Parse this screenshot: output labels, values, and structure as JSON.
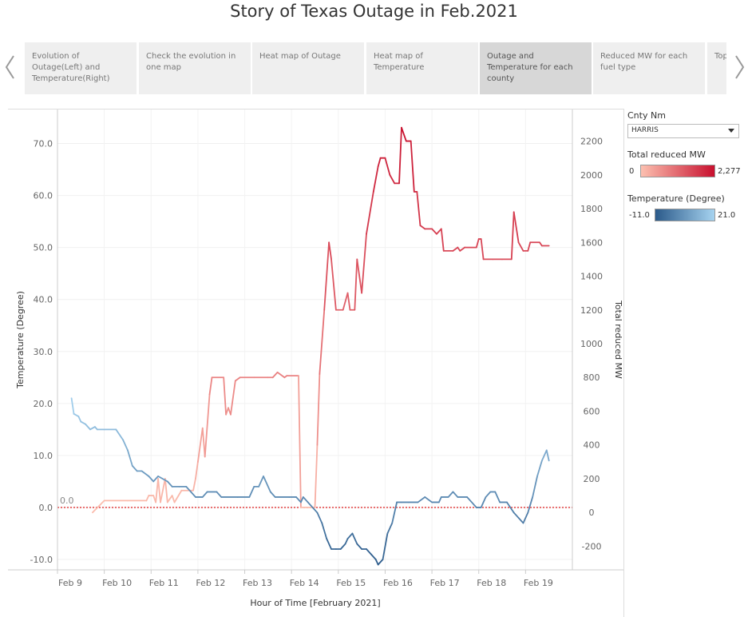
{
  "title": "Story of Texas Outage in Feb.2021",
  "tabs": [
    {
      "label": "Evolution of Outage(Left) and Temperature(Right)"
    },
    {
      "label": "Check the evolution in one map"
    },
    {
      "label": "Heat map of Outage"
    },
    {
      "label": "Heat map of Temperature"
    },
    {
      "label": "Outage and Temperature for each county",
      "active": true
    },
    {
      "label": "Reduced MW for each fuel type"
    },
    {
      "label": "Top ... at ..."
    }
  ],
  "legend": {
    "county_title": "Cnty Nm",
    "county_value": "HARRIS",
    "mw_title": "Total reduced MW",
    "mw_min": "0",
    "mw_max": "2,277",
    "temp_title": "Temperature (Degree)",
    "temp_min": "-11.0",
    "temp_max": "21.0"
  },
  "colors": {
    "mw_low": "#fcc0b0",
    "mw_high": "#c8102e",
    "temp_low": "#2b5a8a",
    "temp_high": "#a6d3f0",
    "reference_line": "#e03030"
  },
  "chart_data": {
    "type": "line",
    "xlabel": "Hour of Time [February 2021]",
    "ylabel_left": "Temperature (Degree)",
    "ylabel_right": "Total reduced MW",
    "x_ticks": [
      "Feb 9",
      "Feb 10",
      "Feb 11",
      "Feb 12",
      "Feb 13",
      "Feb 14",
      "Feb 15",
      "Feb 16",
      "Feb 17",
      "Feb 18",
      "Feb 19"
    ],
    "xlim": [
      "Feb 9",
      "Feb 20"
    ],
    "ylim_left": [
      -12,
      75
    ],
    "ylim_right": [
      -340,
      2340
    ],
    "y_ticks_left": [
      "-10.0",
      "0.0",
      "10.0",
      "20.0",
      "30.0",
      "40.0",
      "50.0",
      "60.0",
      "70.0"
    ],
    "y_ticks_right": [
      "-200",
      "0",
      "200",
      "400",
      "600",
      "800",
      "1000",
      "1200",
      "1400",
      "1600",
      "1800",
      "2000",
      "2200"
    ],
    "reference_line": {
      "axis": "left",
      "value": 0,
      "label": "0.0"
    },
    "series": [
      {
        "name": "Total reduced MW",
        "axis": "right",
        "points": [
          [
            9.75,
            0
          ],
          [
            10.0,
            70
          ],
          [
            10.5,
            70
          ],
          [
            10.9,
            70
          ],
          [
            10.95,
            100
          ],
          [
            11.05,
            100
          ],
          [
            11.1,
            60
          ],
          [
            11.15,
            200
          ],
          [
            11.2,
            60
          ],
          [
            11.3,
            200
          ],
          [
            11.35,
            60
          ],
          [
            11.45,
            100
          ],
          [
            11.5,
            60
          ],
          [
            11.65,
            130
          ],
          [
            11.9,
            130
          ],
          [
            11.95,
            200
          ],
          [
            12.0,
            300
          ],
          [
            12.1,
            500
          ],
          [
            12.15,
            330
          ],
          [
            12.25,
            700
          ],
          [
            12.3,
            800
          ],
          [
            12.55,
            800
          ],
          [
            12.6,
            580
          ],
          [
            12.65,
            620
          ],
          [
            12.7,
            580
          ],
          [
            12.8,
            780
          ],
          [
            12.9,
            800
          ],
          [
            13.2,
            800
          ],
          [
            13.5,
            800
          ],
          [
            13.6,
            800
          ],
          [
            13.7,
            830
          ],
          [
            13.85,
            800
          ],
          [
            13.9,
            810
          ],
          [
            14.15,
            810
          ],
          [
            14.2,
            30
          ],
          [
            14.5,
            30
          ],
          [
            14.55,
            400
          ],
          [
            14.6,
            820
          ],
          [
            14.7,
            1200
          ],
          [
            14.8,
            1600
          ],
          [
            14.85,
            1500
          ],
          [
            14.95,
            1200
          ],
          [
            15.1,
            1200
          ],
          [
            15.2,
            1300
          ],
          [
            15.25,
            1200
          ],
          [
            15.35,
            1200
          ],
          [
            15.4,
            1500
          ],
          [
            15.5,
            1300
          ],
          [
            15.6,
            1650
          ],
          [
            15.75,
            1900
          ],
          [
            15.85,
            2050
          ],
          [
            15.9,
            2100
          ],
          [
            16.0,
            2100
          ],
          [
            16.1,
            2000
          ],
          [
            16.2,
            1950
          ],
          [
            16.3,
            1950
          ],
          [
            16.35,
            2280
          ],
          [
            16.45,
            2200
          ],
          [
            16.55,
            2200
          ],
          [
            16.62,
            1900
          ],
          [
            16.68,
            1900
          ],
          [
            16.75,
            1700
          ],
          [
            16.85,
            1680
          ],
          [
            17.0,
            1680
          ],
          [
            17.1,
            1650
          ],
          [
            17.2,
            1680
          ],
          [
            17.25,
            1550
          ],
          [
            17.45,
            1550
          ],
          [
            17.55,
            1570
          ],
          [
            17.6,
            1550
          ],
          [
            17.7,
            1570
          ],
          [
            17.95,
            1570
          ],
          [
            18.0,
            1620
          ],
          [
            18.05,
            1620
          ],
          [
            18.1,
            1500
          ],
          [
            18.3,
            1500
          ],
          [
            18.5,
            1500
          ],
          [
            18.7,
            1500
          ],
          [
            18.75,
            1780
          ],
          [
            18.85,
            1600
          ],
          [
            18.95,
            1550
          ],
          [
            19.05,
            1550
          ],
          [
            19.1,
            1600
          ],
          [
            19.3,
            1600
          ],
          [
            19.35,
            1580
          ],
          [
            19.5,
            1580
          ]
        ]
      },
      {
        "name": "Temperature",
        "axis": "left",
        "points": [
          [
            9.3,
            21
          ],
          [
            9.35,
            18
          ],
          [
            9.45,
            17.5
          ],
          [
            9.5,
            16.5
          ],
          [
            9.6,
            16
          ],
          [
            9.7,
            15
          ],
          [
            9.8,
            15.5
          ],
          [
            9.85,
            15
          ],
          [
            10.0,
            15
          ],
          [
            10.25,
            15
          ],
          [
            10.4,
            13
          ],
          [
            10.5,
            11
          ],
          [
            10.6,
            8
          ],
          [
            10.7,
            7
          ],
          [
            10.8,
            7
          ],
          [
            10.95,
            6
          ],
          [
            11.05,
            5
          ],
          [
            11.15,
            6
          ],
          [
            11.35,
            5
          ],
          [
            11.45,
            4
          ],
          [
            11.6,
            4
          ],
          [
            11.75,
            4
          ],
          [
            11.85,
            3
          ],
          [
            11.95,
            2
          ],
          [
            12.1,
            2
          ],
          [
            12.2,
            3
          ],
          [
            12.4,
            3
          ],
          [
            12.5,
            2
          ],
          [
            12.85,
            2
          ],
          [
            13.1,
            2
          ],
          [
            13.2,
            4
          ],
          [
            13.3,
            4
          ],
          [
            13.4,
            6
          ],
          [
            13.55,
            3
          ],
          [
            13.65,
            2
          ],
          [
            13.95,
            2
          ],
          [
            14.1,
            2
          ],
          [
            14.2,
            1
          ],
          [
            14.25,
            2
          ],
          [
            14.35,
            1
          ],
          [
            14.45,
            0
          ],
          [
            14.55,
            -1
          ],
          [
            14.65,
            -3
          ],
          [
            14.75,
            -6
          ],
          [
            14.85,
            -8
          ],
          [
            14.95,
            -8
          ],
          [
            15.05,
            -8
          ],
          [
            15.15,
            -7
          ],
          [
            15.2,
            -6
          ],
          [
            15.3,
            -5
          ],
          [
            15.4,
            -7
          ],
          [
            15.5,
            -8
          ],
          [
            15.6,
            -8
          ],
          [
            15.7,
            -9
          ],
          [
            15.8,
            -10
          ],
          [
            15.85,
            -11
          ],
          [
            15.95,
            -10
          ],
          [
            16.05,
            -5
          ],
          [
            16.15,
            -3
          ],
          [
            16.25,
            1
          ],
          [
            16.35,
            1
          ],
          [
            16.5,
            1
          ],
          [
            16.7,
            1
          ],
          [
            16.85,
            2
          ],
          [
            17.0,
            1
          ],
          [
            17.15,
            1
          ],
          [
            17.2,
            2
          ],
          [
            17.35,
            2
          ],
          [
            17.45,
            3
          ],
          [
            17.55,
            2
          ],
          [
            17.75,
            2
          ],
          [
            17.95,
            0
          ],
          [
            18.05,
            0
          ],
          [
            18.15,
            2
          ],
          [
            18.25,
            3
          ],
          [
            18.35,
            3
          ],
          [
            18.45,
            1
          ],
          [
            18.6,
            1
          ],
          [
            18.75,
            -1
          ],
          [
            18.85,
            -2
          ],
          [
            18.95,
            -3
          ],
          [
            19.05,
            -1
          ],
          [
            19.15,
            2
          ],
          [
            19.25,
            6
          ],
          [
            19.35,
            9
          ],
          [
            19.45,
            11
          ],
          [
            19.5,
            9
          ]
        ]
      }
    ]
  }
}
